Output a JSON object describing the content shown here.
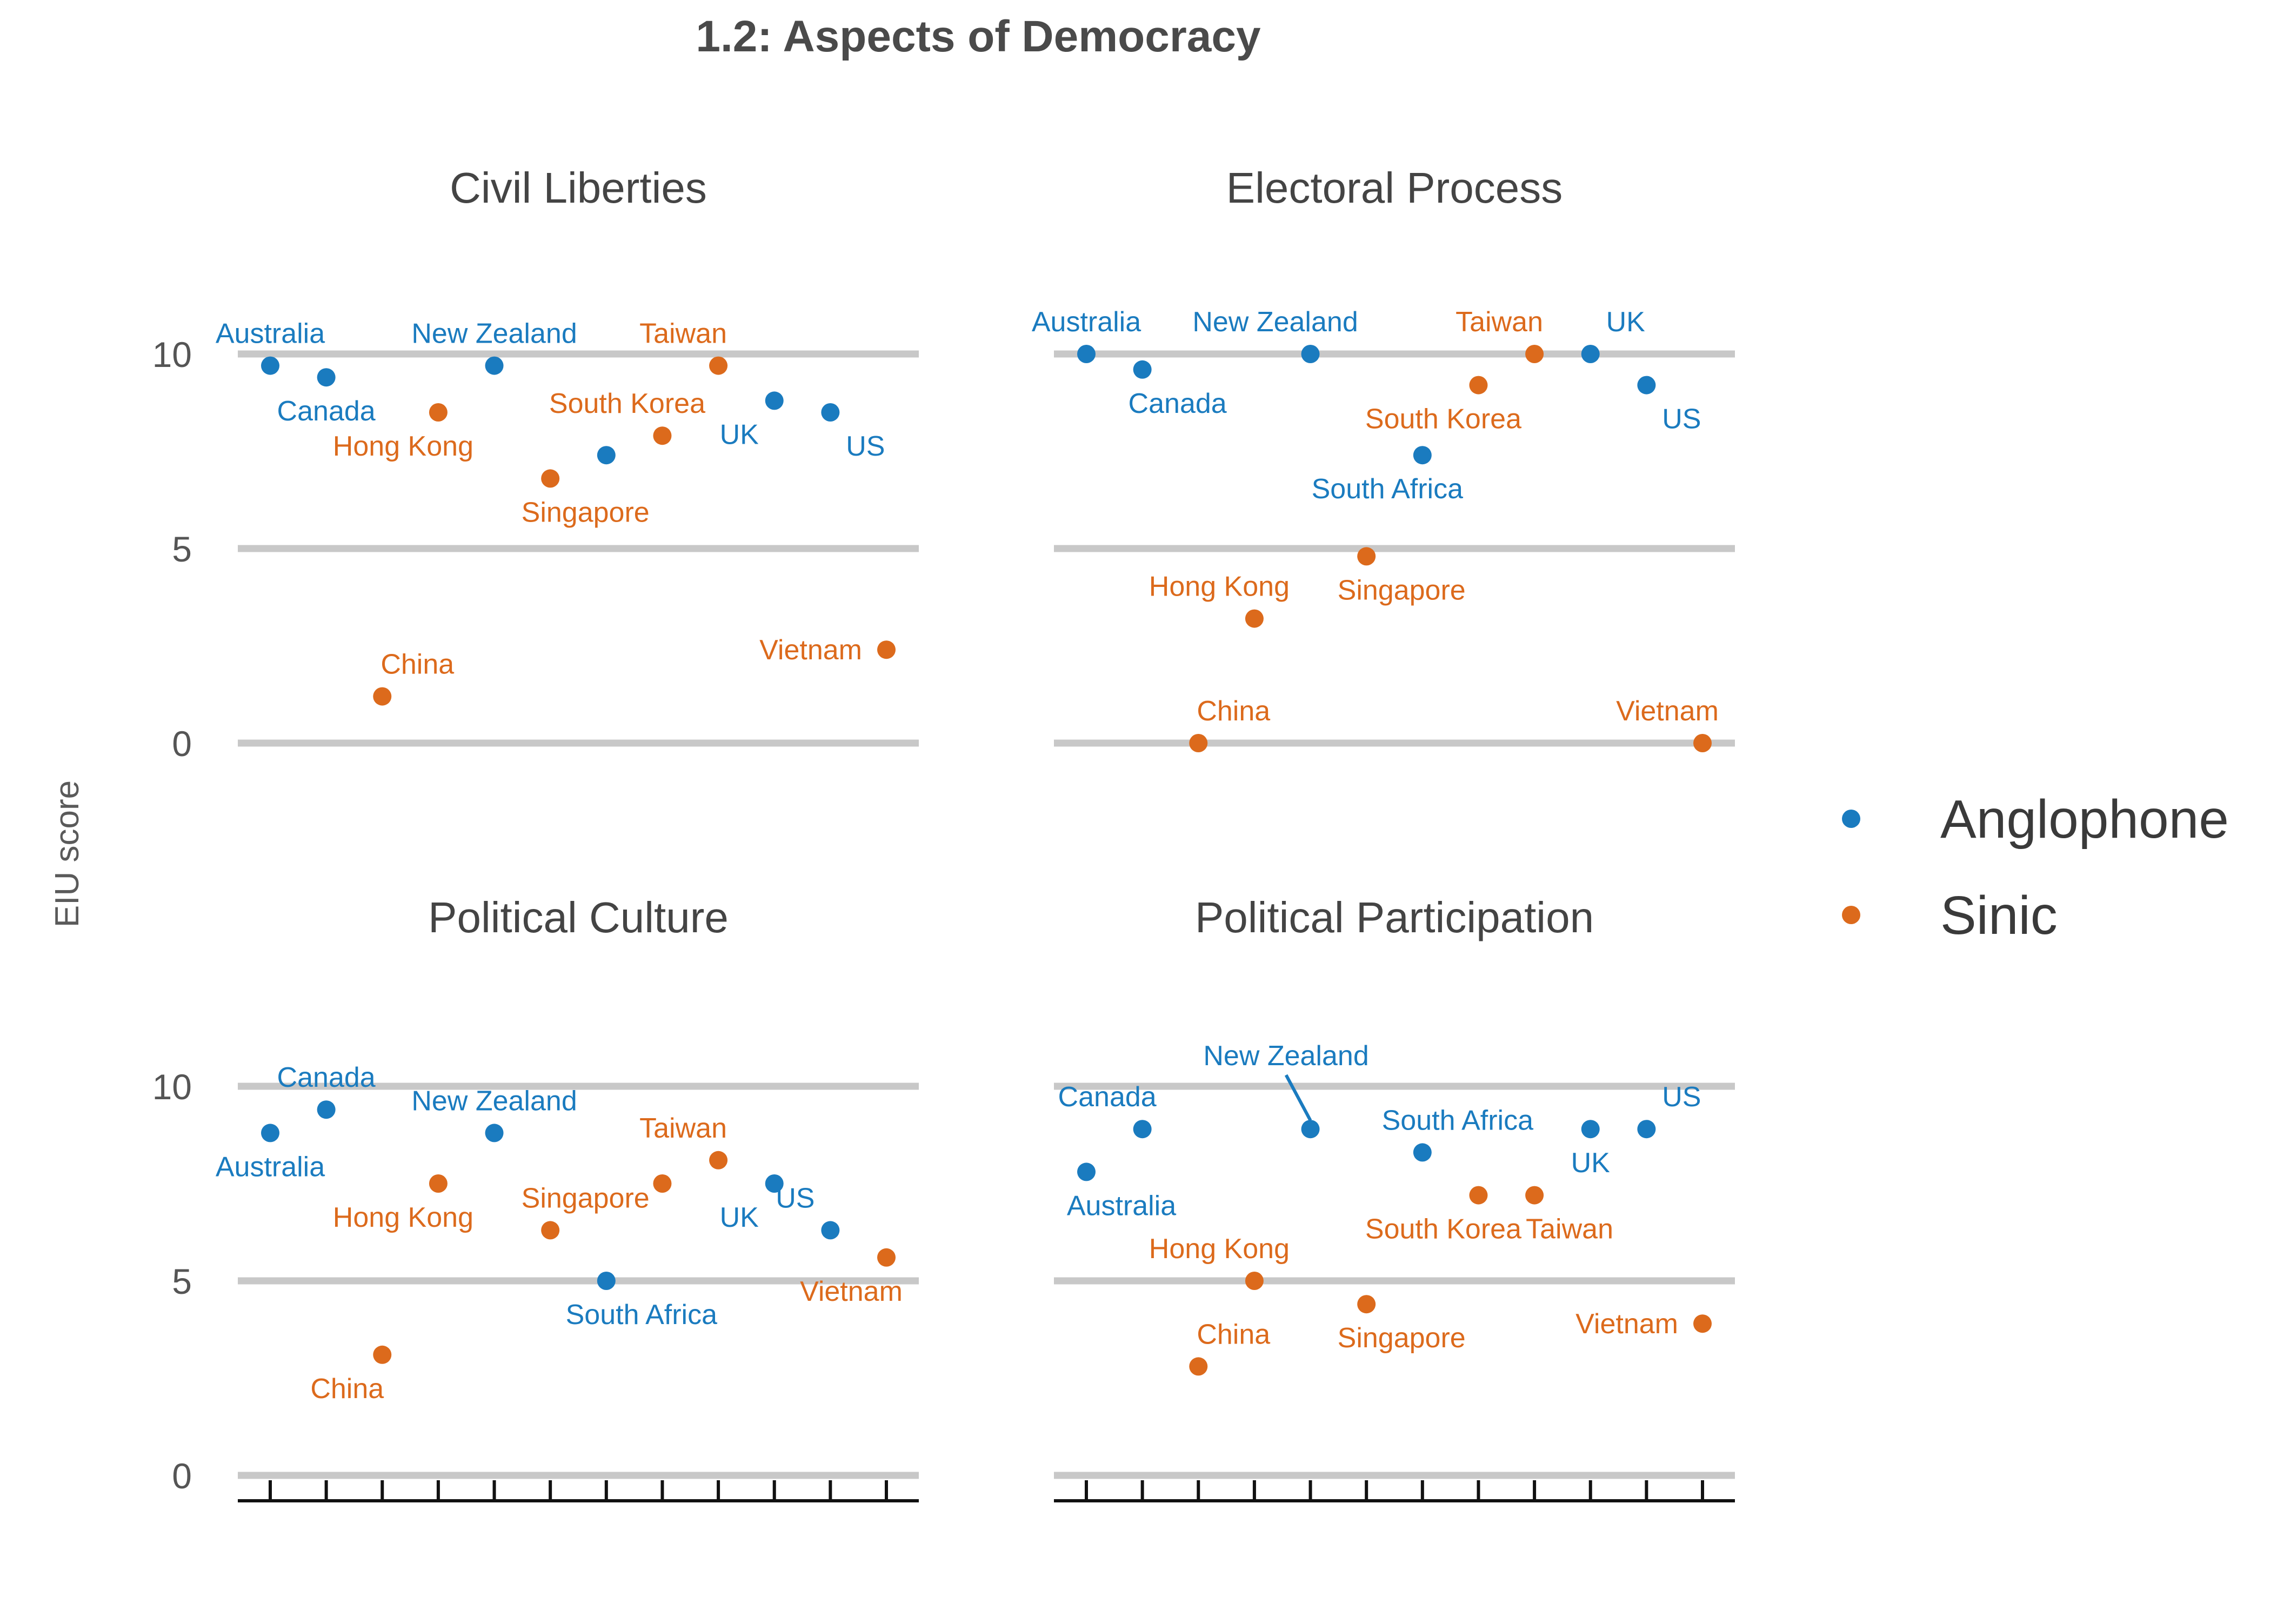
{
  "chart_data": {
    "type": "scatter",
    "title": "1.2: Aspects of Democracy",
    "ylabel": "EIU score",
    "ylim": [
      0,
      10
    ],
    "yticks": [
      0,
      5,
      10
    ],
    "grid": true,
    "legend_position": "right",
    "colors": {
      "Anglophone": "#1a7bbf",
      "Sinic": "#dc6a1c"
    },
    "legend": [
      {
        "name": "Anglophone",
        "color": "#1a7bbf"
      },
      {
        "name": "Sinic",
        "color": "#dc6a1c"
      }
    ],
    "x_order": [
      "Australia",
      "Canada",
      "China",
      "Hong Kong",
      "New Zealand",
      "Singapore",
      "South Africa",
      "South Korea",
      "Taiwan",
      "UK",
      "US",
      "Vietnam"
    ],
    "panels": [
      {
        "title": "Civil Liberties",
        "points": [
          {
            "country": "Australia",
            "group": "Anglophone",
            "value": 9.7,
            "label": "Australia",
            "lpos": "above"
          },
          {
            "country": "Canada",
            "group": "Anglophone",
            "value": 9.4,
            "label": "Canada",
            "lpos": "below"
          },
          {
            "country": "China",
            "group": "Sinic",
            "value": 1.2,
            "label": "China",
            "lpos": "above-right"
          },
          {
            "country": "Hong Kong",
            "group": "Sinic",
            "value": 8.5,
            "label": "Hong Kong",
            "lpos": "below-left"
          },
          {
            "country": "New Zealand",
            "group": "Anglophone",
            "value": 9.7,
            "label": "New Zealand",
            "lpos": "above"
          },
          {
            "country": "Singapore",
            "group": "Sinic",
            "value": 6.8,
            "label": "Singapore",
            "lpos": "below-right"
          },
          {
            "country": "South Africa",
            "group": "Anglophone",
            "value": 7.4,
            "label": "",
            "lpos": "none"
          },
          {
            "country": "South Korea",
            "group": "Sinic",
            "value": 7.9,
            "label": "South Korea",
            "lpos": "above-left"
          },
          {
            "country": "Taiwan",
            "group": "Sinic",
            "value": 9.7,
            "label": "Taiwan",
            "lpos": "above-left"
          },
          {
            "country": "UK",
            "group": "Anglophone",
            "value": 8.8,
            "label": "UK",
            "lpos": "below-left"
          },
          {
            "country": "US",
            "group": "Anglophone",
            "value": 8.5,
            "label": "US",
            "lpos": "below-right"
          },
          {
            "country": "Vietnam",
            "group": "Sinic",
            "value": 2.4,
            "label": "Vietnam",
            "lpos": "left"
          }
        ]
      },
      {
        "title": "Electoral Process",
        "points": [
          {
            "country": "Australia",
            "group": "Anglophone",
            "value": 10.0,
            "label": "Australia",
            "lpos": "above"
          },
          {
            "country": "Canada",
            "group": "Anglophone",
            "value": 9.6,
            "label": "Canada",
            "lpos": "below-right"
          },
          {
            "country": "China",
            "group": "Sinic",
            "value": 0.0,
            "label": "China",
            "lpos": "above-right"
          },
          {
            "country": "Hong Kong",
            "group": "Sinic",
            "value": 3.2,
            "label": "Hong Kong",
            "lpos": "above-left"
          },
          {
            "country": "New Zealand",
            "group": "Anglophone",
            "value": 10.0,
            "label": "New Zealand",
            "lpos": "above-left"
          },
          {
            "country": "Singapore",
            "group": "Sinic",
            "value": 4.8,
            "label": "Singapore",
            "lpos": "below-right"
          },
          {
            "country": "South Africa",
            "group": "Anglophone",
            "value": 7.4,
            "label": "South Africa",
            "lpos": "below-left"
          },
          {
            "country": "South Korea",
            "group": "Sinic",
            "value": 9.2,
            "label": "South Korea",
            "lpos": "below-left"
          },
          {
            "country": "Taiwan",
            "group": "Sinic",
            "value": 10.0,
            "label": "Taiwan",
            "lpos": "above-left"
          },
          {
            "country": "UK",
            "group": "Anglophone",
            "value": 10.0,
            "label": "UK",
            "lpos": "above-right"
          },
          {
            "country": "US",
            "group": "Anglophone",
            "value": 9.2,
            "label": "US",
            "lpos": "below-right"
          },
          {
            "country": "Vietnam",
            "group": "Sinic",
            "value": 0.0,
            "label": "Vietnam",
            "lpos": "above-left"
          }
        ]
      },
      {
        "title": "Political Culture",
        "points": [
          {
            "country": "Australia",
            "group": "Anglophone",
            "value": 8.8,
            "label": "Australia",
            "lpos": "below"
          },
          {
            "country": "Canada",
            "group": "Anglophone",
            "value": 9.4,
            "label": "Canada",
            "lpos": "above"
          },
          {
            "country": "China",
            "group": "Sinic",
            "value": 3.1,
            "label": "China",
            "lpos": "below-left"
          },
          {
            "country": "Hong Kong",
            "group": "Sinic",
            "value": 7.5,
            "label": "Hong Kong",
            "lpos": "below-left"
          },
          {
            "country": "New Zealand",
            "group": "Anglophone",
            "value": 8.8,
            "label": "New Zealand",
            "lpos": "above"
          },
          {
            "country": "Singapore",
            "group": "Sinic",
            "value": 6.3,
            "label": "Singapore",
            "lpos": "above-right"
          },
          {
            "country": "South Africa",
            "group": "Anglophone",
            "value": 5.0,
            "label": "South Africa",
            "lpos": "below-right"
          },
          {
            "country": "South Korea",
            "group": "Sinic",
            "value": 7.5,
            "label": "",
            "lpos": "none"
          },
          {
            "country": "Taiwan",
            "group": "Sinic",
            "value": 8.1,
            "label": "Taiwan",
            "lpos": "above-left"
          },
          {
            "country": "UK",
            "group": "Anglophone",
            "value": 7.5,
            "label": "UK",
            "lpos": "below-left"
          },
          {
            "country": "US",
            "group": "Anglophone",
            "value": 6.3,
            "label": "US",
            "lpos": "above-left"
          },
          {
            "country": "Vietnam",
            "group": "Sinic",
            "value": 5.6,
            "label": "Vietnam",
            "lpos": "below-left"
          }
        ]
      },
      {
        "title": "Political Participation",
        "points": [
          {
            "country": "Australia",
            "group": "Anglophone",
            "value": 7.8,
            "label": "Australia",
            "lpos": "below-right"
          },
          {
            "country": "Canada",
            "group": "Anglophone",
            "value": 8.9,
            "label": "Canada",
            "lpos": "above-left"
          },
          {
            "country": "China",
            "group": "Sinic",
            "value": 2.8,
            "label": "China",
            "lpos": "above-right"
          },
          {
            "country": "Hong Kong",
            "group": "Sinic",
            "value": 5.0,
            "label": "Hong Kong",
            "lpos": "above-left"
          },
          {
            "country": "New Zealand",
            "group": "Anglophone",
            "value": 8.9,
            "label": "New Zealand",
            "lpos": "leader"
          },
          {
            "country": "Singapore",
            "group": "Sinic",
            "value": 4.4,
            "label": "Singapore",
            "lpos": "below-right"
          },
          {
            "country": "South Africa",
            "group": "Anglophone",
            "value": 8.3,
            "label": "South Africa",
            "lpos": "above-right"
          },
          {
            "country": "South Korea",
            "group": "Sinic",
            "value": 7.2,
            "label": "South Korea",
            "lpos": "below-left"
          },
          {
            "country": "Taiwan",
            "group": "Sinic",
            "value": 7.2,
            "label": "Taiwan",
            "lpos": "below-right"
          },
          {
            "country": "UK",
            "group": "Anglophone",
            "value": 8.9,
            "label": "UK",
            "lpos": "below"
          },
          {
            "country": "US",
            "group": "Anglophone",
            "value": 8.9,
            "label": "US",
            "lpos": "above-right"
          },
          {
            "country": "Vietnam",
            "group": "Sinic",
            "value": 3.9,
            "label": "Vietnam",
            "lpos": "left"
          }
        ]
      }
    ]
  }
}
